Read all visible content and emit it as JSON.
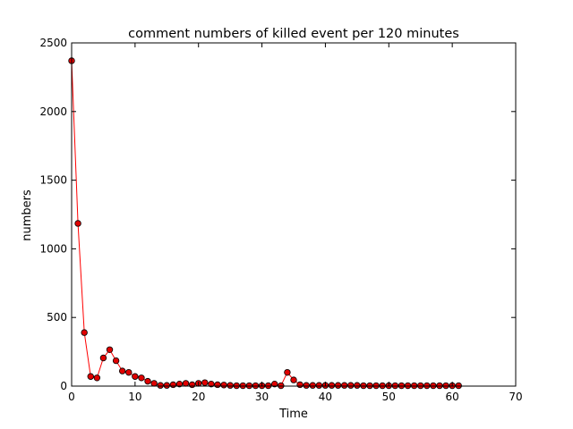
{
  "chart_data": {
    "type": "line",
    "title": "comment numbers of killed event per 120 minutes",
    "xlabel": "Time",
    "ylabel": "numbers",
    "xlim": [
      0,
      70
    ],
    "ylim": [
      0,
      2500
    ],
    "xticks": [
      0,
      10,
      20,
      30,
      40,
      50,
      60,
      70
    ],
    "yticks": [
      0,
      500,
      1000,
      1500,
      2000,
      2500
    ],
    "grid": false,
    "legend": "none",
    "line_color": "#ff0000",
    "marker_color": "#e00000",
    "marker_edge_color": "#000000",
    "series": [
      {
        "x": [
          0,
          1,
          2,
          3,
          4,
          5,
          6,
          7,
          8,
          9,
          10,
          11,
          12,
          13,
          14,
          15,
          16,
          17,
          18,
          19,
          20,
          21,
          22,
          23,
          24,
          25,
          26,
          27,
          28,
          29,
          30,
          31,
          32,
          33,
          34,
          35,
          36,
          37,
          38,
          39,
          40,
          41,
          42,
          43,
          44,
          45,
          46,
          47,
          48,
          49,
          50,
          51,
          52,
          53,
          54,
          55,
          56,
          57,
          58,
          59,
          60,
          61
        ],
        "values": [
          2370,
          1185,
          390,
          70,
          60,
          205,
          265,
          185,
          110,
          100,
          70,
          60,
          35,
          20,
          5,
          5,
          10,
          15,
          20,
          10,
          20,
          25,
          15,
          10,
          8,
          5,
          3,
          3,
          3,
          3,
          3,
          3,
          15,
          3,
          100,
          45,
          10,
          5,
          5,
          5,
          5,
          5,
          5,
          5,
          5,
          5,
          3,
          3,
          3,
          3,
          3,
          3,
          3,
          3,
          3,
          3,
          3,
          3,
          3,
          3,
          3,
          3
        ]
      }
    ]
  }
}
